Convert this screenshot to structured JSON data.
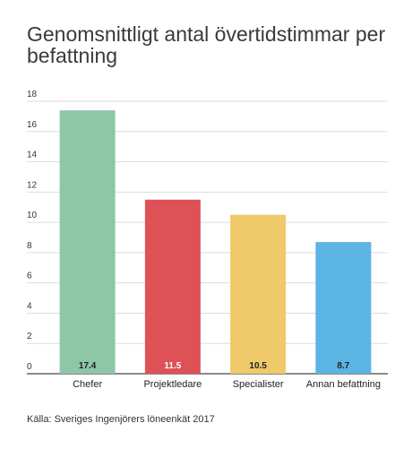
{
  "chart_data": {
    "type": "bar",
    "title": "Genomsnittligt antal övertidstimmar per befattning",
    "categories": [
      "Chefer",
      "Projektledare",
      "Specialister",
      "Annan befattning"
    ],
    "values": [
      17.4,
      11.5,
      10.5,
      8.7
    ],
    "value_labels": [
      "17.4",
      "11.5",
      "10.5",
      "8.7"
    ],
    "colors": [
      "#8dc7a6",
      "#dd5157",
      "#efc96a",
      "#5bb4e3"
    ],
    "value_label_colors": [
      "#222222",
      "#ffffff",
      "#222222",
      "#222222"
    ],
    "ylim": [
      0,
      18
    ],
    "yticks": [
      0,
      2,
      4,
      6,
      8,
      10,
      12,
      14,
      16,
      18
    ],
    "grid": true,
    "legend": "none",
    "xlabel": "",
    "ylabel": ""
  },
  "source": "Källa: Sveriges Ingenjörers löneenkät 2017"
}
